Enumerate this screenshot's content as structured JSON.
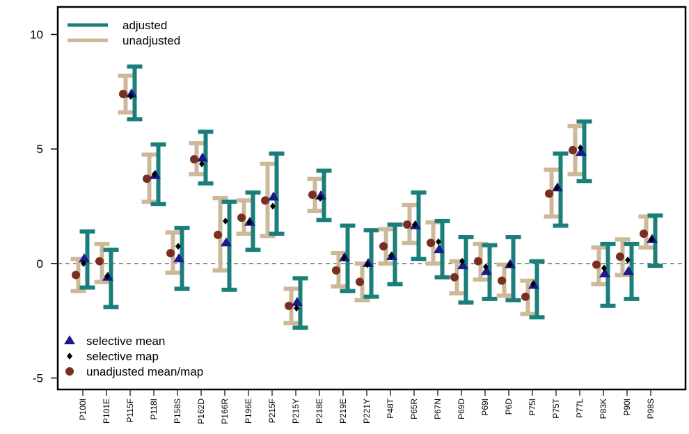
{
  "chart_data": {
    "type": "errorbar",
    "title": "",
    "xlabel": "",
    "ylabel": "",
    "ylim": [
      -5.5,
      11.2
    ],
    "yticks": [
      -5,
      0,
      5,
      10
    ],
    "reference_line": 0,
    "categories": [
      "P100I",
      "P101E",
      "P115F",
      "P118I",
      "P158S",
      "P162D",
      "P166R",
      "P196E",
      "P215F",
      "P215Y",
      "P218E",
      "P219E",
      "P221Y",
      "P48T",
      "P65R",
      "P67N",
      "P69D",
      "P69I",
      "P6D",
      "P75I",
      "P75T",
      "P77L",
      "P83K",
      "P90I",
      "P98S"
    ],
    "series": [
      {
        "name": "adjusted",
        "color": "#1a7f7a",
        "low": [
          -1.05,
          -1.9,
          6.3,
          2.6,
          -1.1,
          3.5,
          -1.15,
          0.6,
          1.3,
          -2.8,
          1.9,
          -1.2,
          -1.45,
          -0.9,
          0.2,
          -0.6,
          -1.7,
          -1.55,
          -1.6,
          -2.35,
          1.65,
          3.6,
          -1.85,
          -1.55,
          -0.1
        ],
        "high": [
          1.4,
          0.6,
          8.6,
          5.2,
          1.55,
          5.75,
          2.7,
          3.1,
          4.8,
          -0.65,
          4.05,
          1.65,
          1.45,
          1.7,
          3.1,
          1.85,
          1.15,
          0.8,
          1.15,
          0.1,
          4.8,
          6.2,
          0.85,
          0.85,
          2.1
        ]
      },
      {
        "name": "unadjusted",
        "color": "#cdb89a",
        "low": [
          -1.2,
          -0.8,
          6.6,
          2.7,
          -0.4,
          3.9,
          -0.3,
          1.3,
          1.2,
          -2.6,
          2.3,
          -1.0,
          -1.6,
          0.0,
          0.9,
          0.0,
          -1.3,
          -0.7,
          -1.4,
          -2.2,
          2.05,
          3.9,
          -0.9,
          -0.5,
          0.7
        ],
        "high": [
          0.2,
          0.85,
          8.2,
          4.75,
          1.35,
          5.25,
          2.85,
          2.75,
          4.35,
          -1.1,
          3.7,
          0.45,
          0.0,
          1.5,
          2.55,
          1.8,
          0.1,
          0.85,
          -0.05,
          -0.75,
          4.1,
          6.0,
          0.7,
          1.05,
          2.05
        ]
      }
    ],
    "points": [
      {
        "name": "selective mean",
        "marker": "triangle",
        "color": "#1a1a8c",
        "values": [
          0.2,
          -0.6,
          7.4,
          3.85,
          0.2,
          4.6,
          0.9,
          1.8,
          2.9,
          -1.7,
          2.95,
          0.25,
          0.0,
          0.3,
          1.65,
          0.6,
          -0.1,
          -0.35,
          -0.05,
          -0.95,
          3.3,
          4.85,
          -0.45,
          -0.35,
          1.05
        ]
      },
      {
        "name": "selective map",
        "marker": "diamond",
        "color": "#000000",
        "values": [
          0.0,
          -0.55,
          7.3,
          3.9,
          0.75,
          4.35,
          1.85,
          1.8,
          2.5,
          -1.95,
          2.85,
          0.25,
          -0.05,
          0.35,
          1.7,
          0.95,
          0.1,
          -0.15,
          -0.05,
          -0.9,
          3.3,
          5.05,
          -0.2,
          0.15,
          1.05
        ]
      },
      {
        "name": "unadjusted mean/map",
        "marker": "circle",
        "color": "#7a2e22",
        "values": [
          -0.5,
          0.1,
          7.4,
          3.7,
          0.45,
          4.55,
          1.25,
          2.0,
          2.75,
          -1.85,
          3.0,
          -0.3,
          -0.8,
          0.75,
          1.7,
          0.9,
          -0.6,
          0.1,
          -0.75,
          -1.45,
          3.05,
          4.95,
          -0.05,
          0.3,
          1.3
        ]
      }
    ],
    "legend_top": [
      "adjusted",
      "unadjusted"
    ],
    "legend_bottom": [
      "selective mean",
      "selective map",
      "unadjusted mean/map"
    ],
    "legend_top_placement": "top-left",
    "legend_bottom_placement": "bottom-left",
    "grid": false
  }
}
